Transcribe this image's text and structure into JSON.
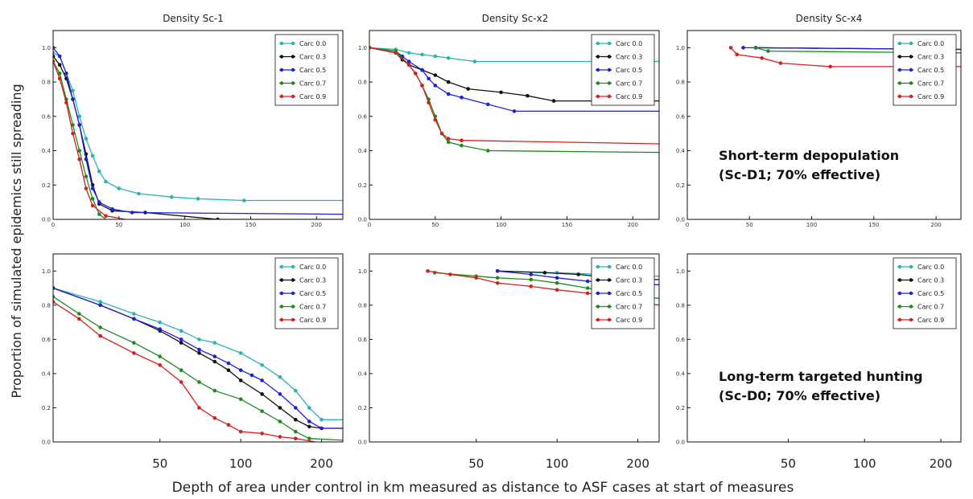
{
  "figure": {
    "col_titles": [
      "Density Sc-1",
      "Density Sc-x2",
      "Density Sc-x4"
    ],
    "ylabel": "Proportion of simulated epidemics still spreading",
    "xlabel": "Depth of area under control in km measured as distance to ASF cases at start of measures",
    "bottom_ticks": [
      "50",
      "100",
      "200"
    ],
    "annotations": {
      "top": [
        "Short-term depopulation",
        "(Sc-D1; 70% effective)"
      ],
      "bottom": [
        "Long-term targeted hunting",
        "(Sc-D0; 70% effective)"
      ]
    },
    "legend": [
      "Carc 0.0",
      "Carc 0.3",
      "Carc 0.5",
      "Carc 0.7",
      "Carc 0.9"
    ],
    "colors": [
      "#2ab3b3",
      "#111111",
      "#1f1fd6",
      "#1e8a1e",
      "#d41f1f"
    ]
  },
  "chart_data": [
    {
      "type": "line",
      "panel": "top-left",
      "title": "Density Sc-1",
      "xlim": [
        0,
        220
      ],
      "ylim": [
        0,
        1.1
      ],
      "xticks": [
        0,
        50,
        100,
        150,
        200
      ],
      "yticks": [
        0,
        0.2,
        0.4,
        0.6,
        0.8,
        1.0
      ],
      "legend_position": "top-right",
      "series": [
        {
          "name": "Carc 0.0",
          "x": [
            0,
            5,
            10,
            15,
            20,
            25,
            30,
            35,
            40,
            50,
            65,
            90,
            110,
            145,
            220
          ],
          "y": [
            0.97,
            0.95,
            0.85,
            0.75,
            0.6,
            0.47,
            0.37,
            0.28,
            0.22,
            0.18,
            0.15,
            0.13,
            0.12,
            0.11,
            0.11
          ]
        },
        {
          "name": "Carc 0.3",
          "x": [
            0,
            5,
            10,
            15,
            20,
            25,
            30,
            35,
            45,
            70,
            125,
            220
          ],
          "y": [
            0.95,
            0.9,
            0.82,
            0.7,
            0.55,
            0.38,
            0.2,
            0.09,
            0.05,
            0.04,
            0.0,
            0.0
          ]
        },
        {
          "name": "Carc 0.5",
          "x": [
            0,
            5,
            10,
            15,
            20,
            25,
            30,
            35,
            45,
            60,
            220
          ],
          "y": [
            1.0,
            0.95,
            0.85,
            0.7,
            0.55,
            0.35,
            0.18,
            0.1,
            0.06,
            0.04,
            0.03
          ]
        },
        {
          "name": "Carc 0.7",
          "x": [
            0,
            5,
            10,
            15,
            20,
            25,
            30,
            35,
            40
          ],
          "y": [
            0.92,
            0.85,
            0.7,
            0.55,
            0.4,
            0.25,
            0.12,
            0.03,
            0.0
          ]
        },
        {
          "name": "Carc 0.9",
          "x": [
            0,
            5,
            10,
            15,
            20,
            25,
            30,
            40,
            55
          ],
          "y": [
            0.92,
            0.82,
            0.68,
            0.5,
            0.35,
            0.18,
            0.08,
            0.02,
            0.0
          ]
        }
      ]
    },
    {
      "type": "line",
      "panel": "top-middle",
      "title": "Density Sc-x2",
      "xlim": [
        0,
        220
      ],
      "ylim": [
        0,
        1.1
      ],
      "xticks": [
        0,
        50,
        100,
        150,
        200
      ],
      "yticks": [
        0,
        0.2,
        0.4,
        0.6,
        0.8,
        1.0
      ],
      "legend_position": "top-right",
      "series": [
        {
          "name": "Carc 0.0",
          "x": [
            0,
            20,
            30,
            40,
            50,
            60,
            80,
            220
          ],
          "y": [
            1.0,
            0.99,
            0.97,
            0.96,
            0.95,
            0.94,
            0.92,
            0.92
          ]
        },
        {
          "name": "Carc 0.3",
          "x": [
            0,
            20,
            25,
            30,
            40,
            50,
            60,
            75,
            100,
            120,
            140,
            220
          ],
          "y": [
            1.0,
            0.97,
            0.93,
            0.9,
            0.87,
            0.84,
            0.8,
            0.76,
            0.74,
            0.72,
            0.69,
            0.69
          ]
        },
        {
          "name": "Carc 0.5",
          "x": [
            0,
            20,
            25,
            30,
            40,
            45,
            50,
            60,
            70,
            90,
            110,
            220
          ],
          "y": [
            1.0,
            0.98,
            0.95,
            0.92,
            0.87,
            0.82,
            0.78,
            0.73,
            0.71,
            0.67,
            0.63,
            0.63
          ]
        },
        {
          "name": "Carc 0.7",
          "x": [
            0,
            20,
            30,
            35,
            40,
            45,
            50,
            55,
            60,
            70,
            90,
            220
          ],
          "y": [
            1.0,
            0.98,
            0.9,
            0.85,
            0.78,
            0.7,
            0.6,
            0.5,
            0.45,
            0.43,
            0.4,
            0.39
          ]
        },
        {
          "name": "Carc 0.9",
          "x": [
            0,
            20,
            30,
            35,
            40,
            45,
            50,
            55,
            60,
            70,
            220
          ],
          "y": [
            1.0,
            0.97,
            0.9,
            0.85,
            0.78,
            0.68,
            0.58,
            0.5,
            0.47,
            0.46,
            0.44
          ]
        }
      ]
    },
    {
      "type": "line",
      "panel": "top-right",
      "title": "Density Sc-x4",
      "xlim": [
        0,
        220
      ],
      "ylim": [
        0,
        1.1
      ],
      "xticks": [
        0,
        50,
        100,
        150,
        200
      ],
      "yticks": [
        0,
        0.2,
        0.4,
        0.6,
        0.8,
        1.0
      ],
      "legend_position": "top-right",
      "series": [
        {
          "name": "Carc 0.0",
          "x": [
            55,
            220
          ],
          "y": [
            1.0,
            0.99
          ]
        },
        {
          "name": "Carc 0.3",
          "x": [
            55,
            220
          ],
          "y": [
            1.0,
            0.99
          ]
        },
        {
          "name": "Carc 0.5",
          "x": [
            45,
            55,
            220
          ],
          "y": [
            1.0,
            1.0,
            0.99
          ]
        },
        {
          "name": "Carc 0.7",
          "x": [
            55,
            65,
            220
          ],
          "y": [
            1.0,
            0.98,
            0.97
          ]
        },
        {
          "name": "Carc 0.9",
          "x": [
            35,
            40,
            60,
            75,
            115,
            220
          ],
          "y": [
            1.0,
            0.96,
            0.94,
            0.91,
            0.89,
            0.89
          ]
        }
      ]
    },
    {
      "type": "line",
      "panel": "bottom-left",
      "xscale": "log",
      "xlim": [
        20,
        240
      ],
      "ylim": [
        0,
        1.1
      ],
      "xticks": [
        50,
        100,
        200
      ],
      "yticks": [
        0,
        0.2,
        0.4,
        0.6,
        0.8,
        1.0
      ],
      "legend_position": "top-right",
      "series": [
        {
          "name": "Carc 0.0",
          "x": [
            20,
            30,
            40,
            50,
            60,
            70,
            80,
            100,
            120,
            140,
            160,
            180,
            200,
            240
          ],
          "y": [
            0.9,
            0.82,
            0.75,
            0.7,
            0.65,
            0.6,
            0.58,
            0.52,
            0.45,
            0.38,
            0.3,
            0.2,
            0.13,
            0.13
          ]
        },
        {
          "name": "Carc 0.3",
          "x": [
            20,
            30,
            40,
            50,
            60,
            70,
            80,
            90,
            100,
            120,
            140,
            160,
            180,
            200,
            240
          ],
          "y": [
            0.9,
            0.8,
            0.72,
            0.65,
            0.58,
            0.52,
            0.47,
            0.42,
            0.36,
            0.28,
            0.2,
            0.13,
            0.09,
            0.08,
            0.08
          ]
        },
        {
          "name": "Carc 0.5",
          "x": [
            20,
            30,
            40,
            50,
            60,
            70,
            80,
            90,
            100,
            110,
            120,
            140,
            160,
            180,
            200,
            240
          ],
          "y": [
            0.9,
            0.8,
            0.72,
            0.66,
            0.6,
            0.54,
            0.5,
            0.46,
            0.42,
            0.39,
            0.36,
            0.28,
            0.2,
            0.12,
            0.08,
            0.08
          ]
        },
        {
          "name": "Carc 0.7",
          "x": [
            20,
            25,
            30,
            40,
            50,
            60,
            70,
            80,
            100,
            120,
            140,
            160,
            180,
            240
          ],
          "y": [
            0.85,
            0.75,
            0.67,
            0.58,
            0.5,
            0.42,
            0.35,
            0.3,
            0.25,
            0.18,
            0.12,
            0.06,
            0.02,
            0.01
          ]
        },
        {
          "name": "Carc 0.9",
          "x": [
            20,
            25,
            30,
            40,
            50,
            60,
            70,
            80,
            90,
            100,
            120,
            140,
            160,
            190
          ],
          "y": [
            0.82,
            0.72,
            0.62,
            0.52,
            0.45,
            0.35,
            0.2,
            0.14,
            0.1,
            0.06,
            0.05,
            0.03,
            0.02,
            0.0
          ]
        }
      ]
    },
    {
      "type": "line",
      "panel": "bottom-middle",
      "xscale": "log",
      "xlim": [
        20,
        240
      ],
      "ylim": [
        0,
        1.1
      ],
      "xticks": [
        50,
        100,
        200
      ],
      "yticks": [
        0,
        0.2,
        0.4,
        0.6,
        0.8,
        1.0
      ],
      "legend_position": "top-right",
      "series": [
        {
          "name": "Carc 0.0",
          "x": [
            60,
            100,
            150,
            200,
            240
          ],
          "y": [
            1.0,
            0.99,
            0.98,
            0.97,
            0.97
          ]
        },
        {
          "name": "Carc 0.3",
          "x": [
            60,
            90,
            120,
            160,
            200,
            240
          ],
          "y": [
            1.0,
            0.99,
            0.98,
            0.96,
            0.95,
            0.95
          ]
        },
        {
          "name": "Carc 0.5",
          "x": [
            60,
            80,
            100,
            130,
            160,
            200,
            240
          ],
          "y": [
            1.0,
            0.98,
            0.96,
            0.94,
            0.93,
            0.92,
            0.92
          ]
        },
        {
          "name": "Carc 0.7",
          "x": [
            35,
            50,
            60,
            80,
            100,
            130,
            160,
            200,
            240
          ],
          "y": [
            0.99,
            0.97,
            0.96,
            0.95,
            0.93,
            0.9,
            0.87,
            0.85,
            0.84
          ]
        },
        {
          "name": "Carc 0.9",
          "x": [
            33,
            40,
            50,
            60,
            80,
            100,
            130,
            160,
            200,
            240
          ],
          "y": [
            1.0,
            0.98,
            0.96,
            0.93,
            0.91,
            0.89,
            0.87,
            0.85,
            0.82,
            0.8
          ]
        }
      ]
    },
    {
      "type": "line",
      "panel": "bottom-right",
      "xscale": "log",
      "xlim": [
        20,
        240
      ],
      "ylim": [
        0,
        1.1
      ],
      "xticks": [
        50,
        100,
        200
      ],
      "yticks": [
        0,
        0.2,
        0.4,
        0.6,
        0.8,
        1.0
      ],
      "legend_position": "top-right",
      "series": []
    }
  ]
}
